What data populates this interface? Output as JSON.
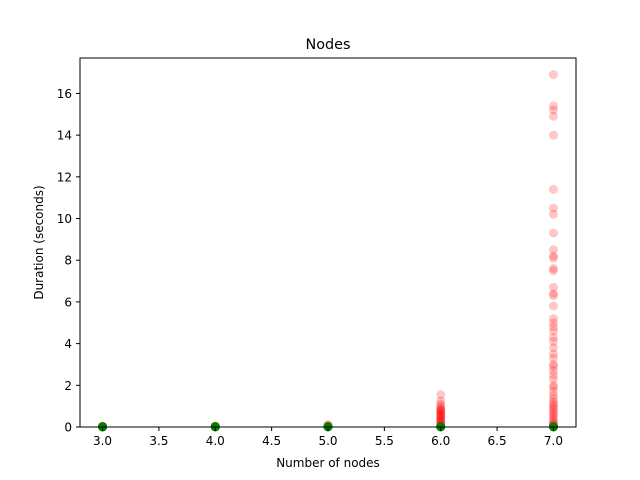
{
  "chart_data": {
    "type": "scatter",
    "title": "Nodes",
    "xlabel": "Number of nodes",
    "ylabel": "Duration (seconds)",
    "xlim": [
      2.8,
      7.2
    ],
    "ylim": [
      0,
      17.7
    ],
    "xticks": [
      "3.0",
      "3.5",
      "4.0",
      "4.5",
      "5.0",
      "5.5",
      "6.0",
      "6.5",
      "7.0"
    ],
    "yticks": [
      "0",
      "2",
      "4",
      "6",
      "8",
      "10",
      "12",
      "14",
      "16"
    ],
    "grid": false,
    "legend": "none",
    "series": [
      {
        "color": "#ff0000",
        "alpha": 0.22,
        "points": [
          [
            3,
            0.02
          ],
          [
            3,
            0.03
          ],
          [
            3,
            0.04
          ],
          [
            4,
            0.02
          ],
          [
            4,
            0.03
          ],
          [
            4,
            0.05
          ],
          [
            5,
            0.04
          ],
          [
            5,
            0.08
          ],
          [
            5,
            0.12
          ],
          [
            6,
            0.02
          ],
          [
            6,
            0.05
          ],
          [
            6,
            0.1
          ],
          [
            6,
            0.15
          ],
          [
            6,
            0.2
          ],
          [
            6,
            0.25
          ],
          [
            6,
            0.3
          ],
          [
            6,
            0.35
          ],
          [
            6,
            0.4
          ],
          [
            6,
            0.45
          ],
          [
            6,
            0.5
          ],
          [
            6,
            0.55
          ],
          [
            6,
            0.6
          ],
          [
            6,
            0.65
          ],
          [
            6,
            0.7
          ],
          [
            6,
            0.75
          ],
          [
            6,
            0.8
          ],
          [
            6,
            0.85
          ],
          [
            6,
            0.9
          ],
          [
            6,
            1.0
          ],
          [
            6,
            1.1
          ],
          [
            6,
            1.25
          ],
          [
            6,
            1.55
          ],
          [
            7,
            0.02
          ],
          [
            7,
            0.05
          ],
          [
            7,
            0.1
          ],
          [
            7,
            0.15
          ],
          [
            7,
            0.2
          ],
          [
            7,
            0.3
          ],
          [
            7,
            0.4
          ],
          [
            7,
            0.5
          ],
          [
            7,
            0.6
          ],
          [
            7,
            0.7
          ],
          [
            7,
            0.8
          ],
          [
            7,
            0.9
          ],
          [
            7,
            1.0
          ],
          [
            7,
            1.1
          ],
          [
            7,
            1.2
          ],
          [
            7,
            1.35
          ],
          [
            7,
            1.5
          ],
          [
            7,
            1.7
          ],
          [
            7,
            1.9
          ],
          [
            7,
            2.0
          ],
          [
            7,
            2.3
          ],
          [
            7,
            2.5
          ],
          [
            7,
            2.7
          ],
          [
            7,
            2.9
          ],
          [
            7,
            3.0
          ],
          [
            7,
            3.3
          ],
          [
            7,
            3.5
          ],
          [
            7,
            3.8
          ],
          [
            7,
            4.1
          ],
          [
            7,
            4.3
          ],
          [
            7,
            4.6
          ],
          [
            7,
            4.8
          ],
          [
            7,
            5.0
          ],
          [
            7,
            5.2
          ],
          [
            7,
            5.8
          ],
          [
            7,
            6.3
          ],
          [
            7,
            6.4
          ],
          [
            7,
            6.7
          ],
          [
            7,
            7.5
          ],
          [
            7,
            7.6
          ],
          [
            7,
            8.1
          ],
          [
            7,
            8.2
          ],
          [
            7,
            8.5
          ],
          [
            7,
            9.3
          ],
          [
            7,
            10.2
          ],
          [
            7,
            10.5
          ],
          [
            7,
            11.4
          ],
          [
            7,
            14.0
          ],
          [
            7,
            14.9
          ],
          [
            7,
            15.2
          ],
          [
            7,
            15.4
          ],
          [
            7,
            16.9
          ]
        ]
      },
      {
        "color": "#008000",
        "alpha": 0.9,
        "points": [
          [
            3,
            0.0
          ],
          [
            3,
            0.01
          ],
          [
            3,
            0.02
          ],
          [
            4,
            0.0
          ],
          [
            4,
            0.01
          ],
          [
            4,
            0.02
          ],
          [
            5,
            0.0
          ],
          [
            5,
            0.02
          ],
          [
            6,
            0.0
          ],
          [
            6,
            0.02
          ],
          [
            7,
            0.0
          ],
          [
            7,
            0.02
          ]
        ]
      }
    ]
  }
}
